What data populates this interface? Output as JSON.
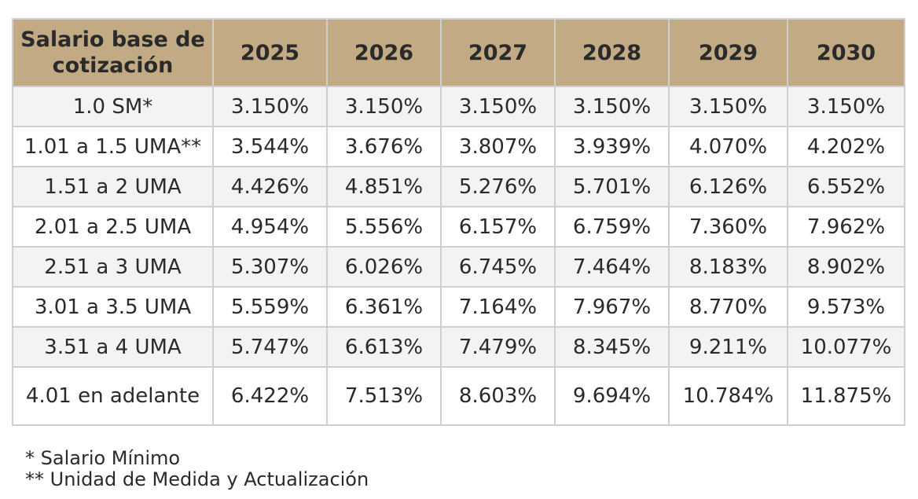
{
  "table": {
    "header": [
      "Salario base de cotización",
      "2025",
      "2026",
      "2027",
      "2028",
      "2029",
      "2030"
    ],
    "rows": [
      {
        "label": "1.0 SM*",
        "values": [
          "3.150%",
          "3.150%",
          "3.150%",
          "3.150%",
          "3.150%",
          "3.150%"
        ]
      },
      {
        "label": "1.01 a 1.5 UMA**",
        "values": [
          "3.544%",
          "3.676%",
          "3.807%",
          "3.939%",
          "4.070%",
          "4.202%"
        ]
      },
      {
        "label": "1.51 a 2 UMA",
        "values": [
          "4.426%",
          "4.851%",
          "5.276%",
          "5.701%",
          "6.126%",
          "6.552%"
        ]
      },
      {
        "label": "2.01 a 2.5 UMA",
        "values": [
          "4.954%",
          "5.556%",
          "6.157%",
          "6.759%",
          "7.360%",
          "7.962%"
        ]
      },
      {
        "label": "2.51 a 3 UMA",
        "values": [
          "5.307%",
          "6.026%",
          "6.745%",
          "7.464%",
          "8.183%",
          "8.902%"
        ]
      },
      {
        "label": "3.01 a 3.5 UMA",
        "values": [
          "5.559%",
          "6.361%",
          "7.164%",
          "7.967%",
          "8.770%",
          "9.573%"
        ]
      },
      {
        "label": "3.51 a 4 UMA",
        "values": [
          "5.747%",
          "6.613%",
          "7.479%",
          "8.345%",
          "9.211%",
          "10.077%"
        ]
      },
      {
        "label": "4.01 en adelante",
        "values": [
          "6.422%",
          "7.513%",
          "8.603%",
          "9.694%",
          "10.784%",
          "11.875%"
        ]
      }
    ]
  },
  "footnotes": [
    "* Salario Mínimo",
    "** Unidad de Medida y Actualización"
  ],
  "colors": {
    "header_bg": "#c2ab84",
    "row_shaded": "#f2f3f5",
    "row_plain": "#ffffff",
    "border": "#cfcfcf"
  }
}
